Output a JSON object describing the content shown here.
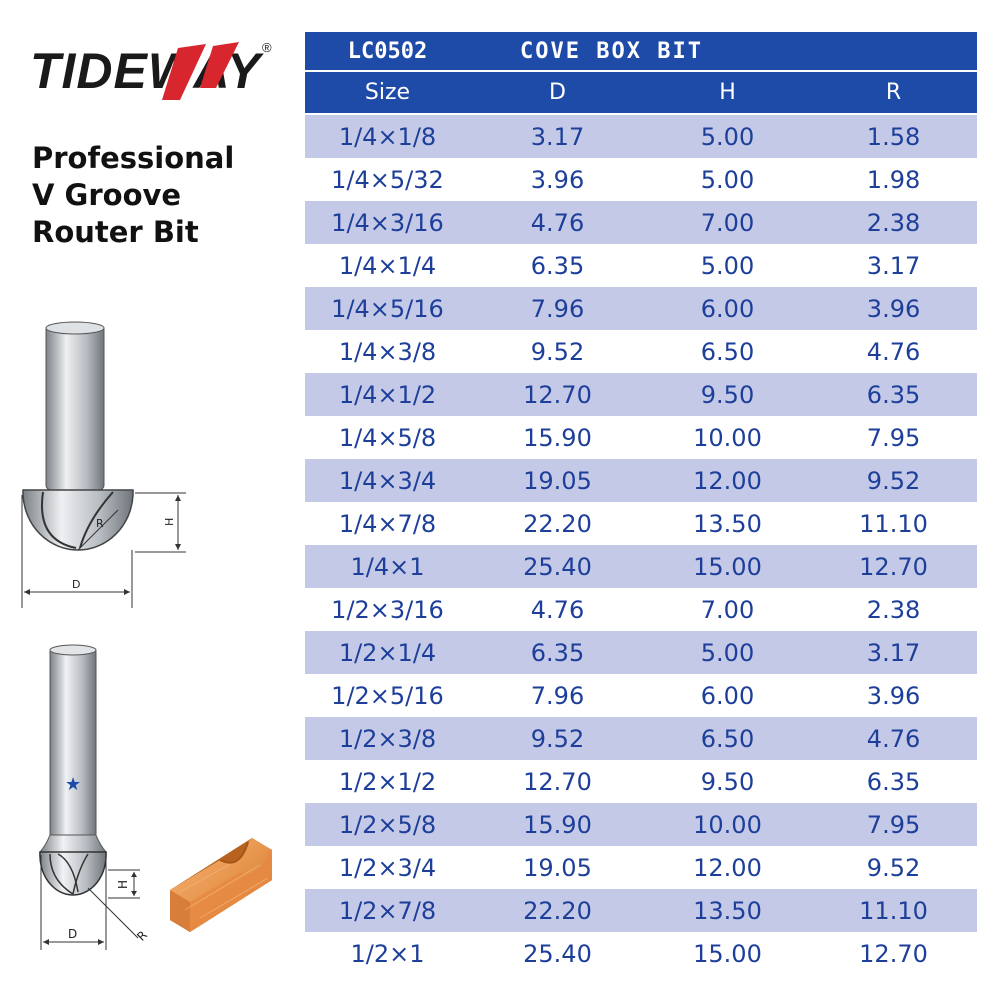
{
  "brand": {
    "name": "TIDEWAY",
    "registered": "®"
  },
  "title_lines": [
    "Professional",
    "V Groove",
    "Router Bit"
  ],
  "diagram_labels": {
    "top_r": "R",
    "top_h": "H",
    "top_d": "D",
    "bottom_h": "H",
    "bottom_d": "D",
    "bottom_r": "R"
  },
  "table": {
    "code": "LC0502",
    "name": "COVE BOX BIT",
    "headers": [
      "Size",
      "D",
      "H",
      "R"
    ],
    "rows": [
      [
        "1/4×1/8",
        "3.17",
        "5.00",
        "1.58"
      ],
      [
        "1/4×5/32",
        "3.96",
        "5.00",
        "1.98"
      ],
      [
        "1/4×3/16",
        "4.76",
        "7.00",
        "2.38"
      ],
      [
        "1/4×1/4",
        "6.35",
        "5.00",
        "3.17"
      ],
      [
        "1/4×5/16",
        "7.96",
        "6.00",
        "3.96"
      ],
      [
        "1/4×3/8",
        "9.52",
        "6.50",
        "4.76"
      ],
      [
        "1/4×1/2",
        "12.70",
        "9.50",
        "6.35"
      ],
      [
        "1/4×5/8",
        "15.90",
        "10.00",
        "7.95"
      ],
      [
        "1/4×3/4",
        "19.05",
        "12.00",
        "9.52"
      ],
      [
        "1/4×7/8",
        "22.20",
        "13.50",
        "11.10"
      ],
      [
        "1/4×1",
        "25.40",
        "15.00",
        "12.70"
      ],
      [
        "1/2×3/16",
        "4.76",
        "7.00",
        "2.38"
      ],
      [
        "1/2×1/4",
        "6.35",
        "5.00",
        "3.17"
      ],
      [
        "1/2×5/16",
        "7.96",
        "6.00",
        "3.96"
      ],
      [
        "1/2×3/8",
        "9.52",
        "6.50",
        "4.76"
      ],
      [
        "1/2×1/2",
        "12.70",
        "9.50",
        "6.35"
      ],
      [
        "1/2×5/8",
        "15.90",
        "10.00",
        "7.95"
      ],
      [
        "1/2×3/4",
        "19.05",
        "12.00",
        "9.52"
      ],
      [
        "1/2×7/8",
        "22.20",
        "13.50",
        "11.10"
      ],
      [
        "1/2×1",
        "25.40",
        "15.00",
        "12.70"
      ]
    ]
  },
  "colors": {
    "header_bg": "#1e4aa8",
    "stripe": "#c5c9e8",
    "cell_text": "#1d3f99",
    "logo_red": "#d8262e",
    "wood": "#e8964e"
  },
  "icons": [
    "star-icon"
  ]
}
